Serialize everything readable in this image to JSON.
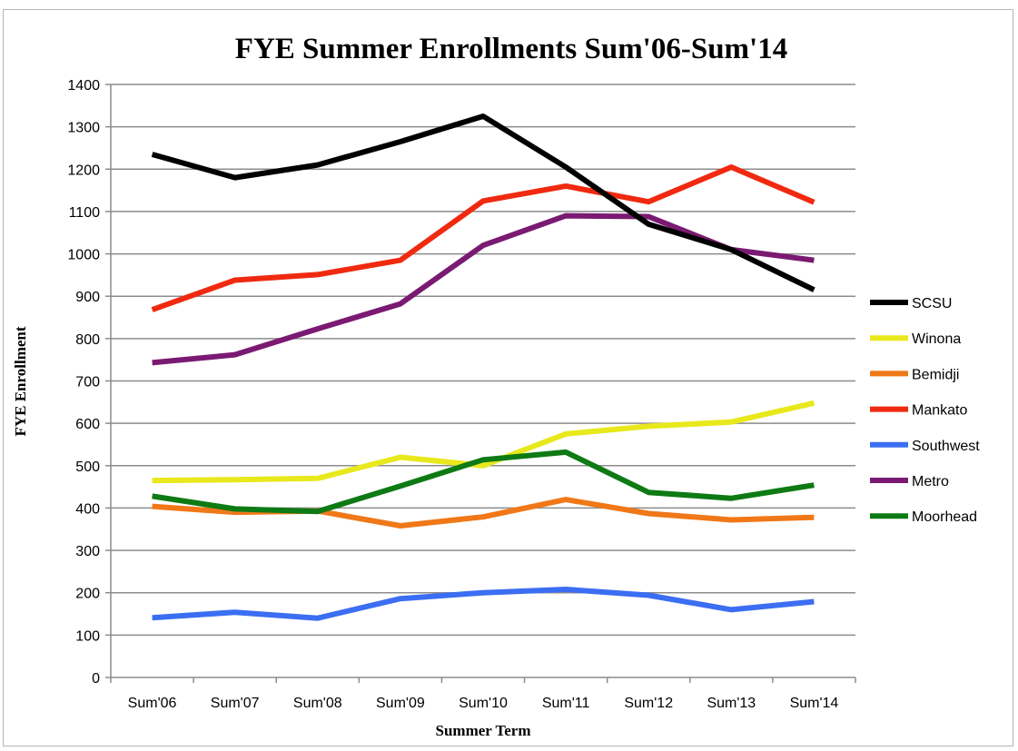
{
  "chart_data": {
    "type": "line",
    "title": "FYE Summer Enrollments Sum'06-Sum'14",
    "xlabel": "Summer Term",
    "ylabel": "FYE Enrollment",
    "ylim": [
      0,
      1400
    ],
    "yticks": [
      0,
      100,
      200,
      300,
      400,
      500,
      600,
      700,
      800,
      900,
      1000,
      1100,
      1200,
      1300,
      1400
    ],
    "categories": [
      "Sum'06",
      "Sum'07",
      "Sum'08",
      "Sum'09",
      "Sum'10",
      "Sum'11",
      "Sum'12",
      "Sum'13",
      "Sum'14"
    ],
    "grid": "horizontal",
    "legend_position": "right",
    "series": [
      {
        "name": "SCSU",
        "color": "#000000",
        "values": [
          1235,
          1180,
          1210,
          1265,
          1325,
          1205,
          1070,
          1010,
          915
        ]
      },
      {
        "name": "Winona",
        "color": "#e8e81c",
        "values": [
          465,
          467,
          470,
          520,
          500,
          575,
          593,
          603,
          648
        ]
      },
      {
        "name": "Bemidji",
        "color": "#f07818",
        "values": [
          404,
          390,
          393,
          358,
          379,
          420,
          387,
          372,
          378
        ]
      },
      {
        "name": "Mankato",
        "color": "#f02a10",
        "values": [
          868,
          938,
          951,
          985,
          1125,
          1160,
          1123,
          1205,
          1122
        ]
      },
      {
        "name": "Southwest",
        "color": "#3b6ef2",
        "values": [
          141,
          154,
          140,
          186,
          200,
          208,
          194,
          160,
          179
        ]
      },
      {
        "name": "Metro",
        "color": "#7a1a72",
        "values": [
          743,
          762,
          823,
          882,
          1020,
          1090,
          1088,
          1010,
          985
        ]
      },
      {
        "name": "Moorhead",
        "color": "#0e7a14",
        "values": [
          428,
          398,
          392,
          452,
          514,
          532,
          437,
          423,
          454
        ]
      }
    ]
  }
}
